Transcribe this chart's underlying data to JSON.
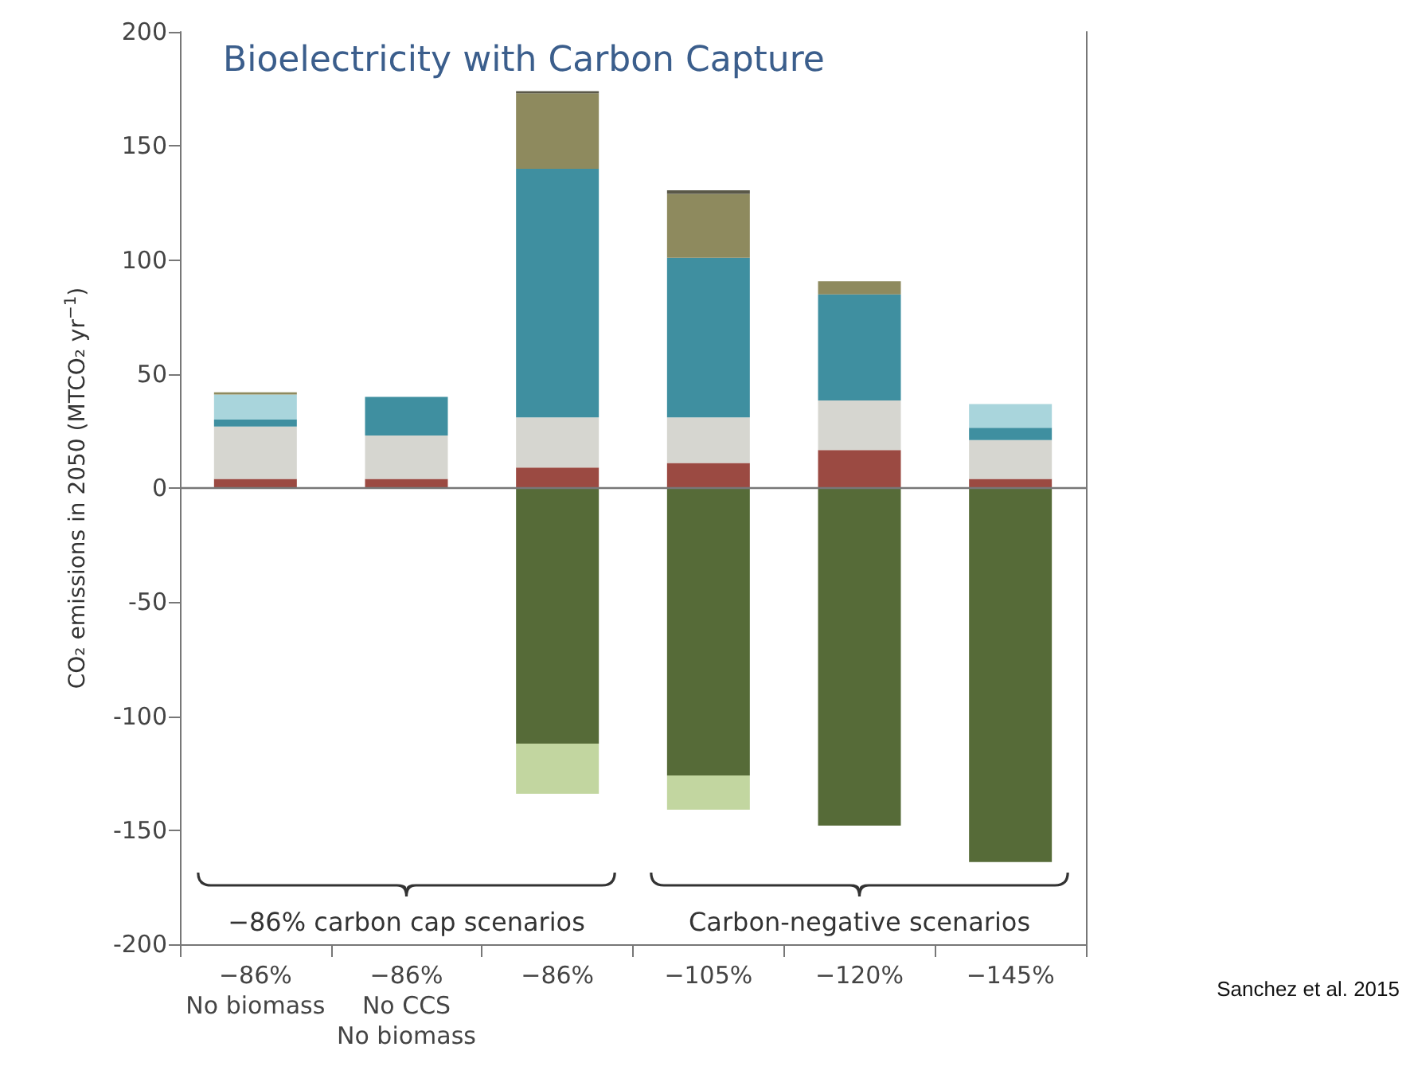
{
  "chart_data": {
    "type": "bar",
    "stacked": true,
    "title": "Bioelectricity with Carbon Capture",
    "ylabel": "CO₂ emissions in 2050 (MTCO₂ yr$^{−1}$)",
    "categories": [
      "−86%\nNo biomass",
      "−86%\nNo CCS\nNo biomass",
      "−86%",
      "−105%",
      "−120%",
      "−145%"
    ],
    "series": [
      {
        "color": "#9b4a42",
        "values": [
          4,
          4,
          9,
          11,
          16.7,
          4
        ]
      },
      {
        "color": "#d6d6d0",
        "values": [
          23,
          19,
          22,
          20,
          21.7,
          17
        ]
      },
      {
        "color": "#3f8fa0",
        "values": [
          3,
          17,
          109,
          70,
          46.5,
          5.4
        ]
      },
      {
        "color": "#a9d5dc",
        "values": [
          11,
          null,
          null,
          null,
          null,
          10.4
        ]
      },
      {
        "color": "#8e8a5e",
        "values": [
          1,
          null,
          33,
          28,
          5.8,
          null
        ]
      },
      {
        "color": "#5a5848",
        "values": [
          null,
          null,
          1,
          1.5,
          null,
          null
        ]
      },
      {
        "color": "#566b38",
        "values": [
          null,
          null,
          -112,
          -126,
          -148,
          -164
        ]
      },
      {
        "color": "#c2d6a0",
        "values": [
          null,
          null,
          -22,
          -15,
          null,
          null
        ]
      }
    ],
    "ylim": [
      -200,
      200
    ],
    "yticks": [
      -200,
      -150,
      -100,
      -50,
      0,
      50,
      100,
      150,
      200
    ],
    "grid": false,
    "ref_lines": [
      {
        "axis": "y",
        "value": 0,
        "color": "#777777"
      }
    ],
    "annotations": [
      "−86% carbon cap scenarios",
      "Carbon-negative scenarios",
      "Sanchez et al. 2015"
    ]
  }
}
